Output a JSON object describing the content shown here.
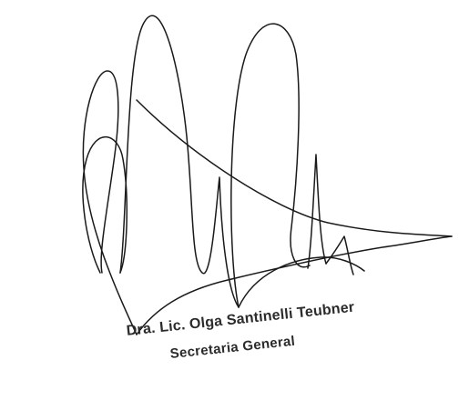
{
  "document": {
    "signatory_name": "Dra. Lic. Olga Santinelli Teubner",
    "signatory_title": "Secretaria General",
    "ink_color": "#1a1a1a"
  }
}
